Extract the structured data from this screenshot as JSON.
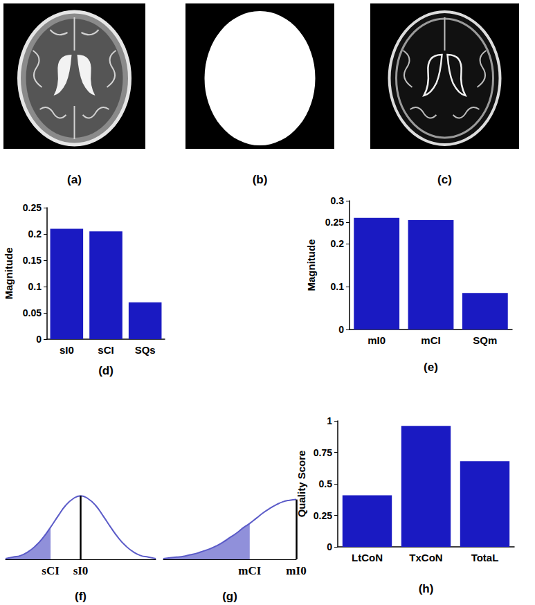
{
  "chart_data": [
    {
      "type": "image",
      "xlabel": "(a)"
    },
    {
      "type": "image",
      "xlabel": "(b)"
    },
    {
      "type": "image",
      "xlabel": "(c)"
    },
    {
      "type": "bar",
      "xlabel": "(d)",
      "ylabel": "Magnitude",
      "categories": [
        "sI0",
        "sCI",
        "SQs"
      ],
      "values": [
        0.21,
        0.205,
        0.07
      ],
      "color": "#1a1ac2",
      "ylim": [
        0,
        0.25
      ],
      "yticks": [
        0,
        0.05,
        0.1,
        0.15,
        0.2,
        0.25
      ],
      "grid": false
    },
    {
      "type": "bar",
      "xlabel": "(e)",
      "ylabel": "Magnitude",
      "categories": [
        "mI0",
        "mCI",
        "SQm"
      ],
      "values": [
        0.26,
        0.255,
        0.085
      ],
      "color": "#1a1ac2",
      "ylim": [
        0,
        0.3
      ],
      "yticks": [
        0,
        0.1,
        0.2,
        0.25,
        0.3
      ],
      "grid": false
    },
    {
      "type": "line",
      "xlabel": "(f)",
      "x": [
        0,
        0.5,
        1,
        1.5,
        2,
        2.5,
        3,
        3.5,
        4,
        4.5,
        5,
        5.5,
        6,
        6.5,
        7,
        7.5,
        8,
        8.5,
        9,
        9.5,
        10
      ],
      "series": [
        {
          "type": "area",
          "color": "#9090da",
          "values": [
            0.01,
            0.03,
            0.05,
            0.1,
            0.18,
            0.29,
            0.43,
            null,
            null,
            null,
            null,
            null,
            null,
            null,
            null,
            null,
            null,
            null,
            null,
            null,
            null
          ]
        },
        {
          "type": "line",
          "color": "#5b5bc8",
          "values": [
            0.01,
            0.03,
            0.05,
            0.1,
            0.18,
            0.29,
            0.43,
            0.58,
            0.72,
            0.81,
            0.85,
            0.81,
            0.72,
            0.58,
            0.43,
            0.29,
            0.18,
            0.1,
            0.05,
            0.03,
            0.01
          ]
        }
      ],
      "vlines": [
        5
      ],
      "xlim": [
        0,
        10
      ],
      "xticks": [
        {
          "value": 3,
          "label": "sCI"
        },
        {
          "value": 5,
          "label": "sI0"
        }
      ],
      "ylim": [
        0,
        1
      ],
      "tick_labels": "x",
      "grid": false
    },
    {
      "type": "line",
      "xlabel": "(g)",
      "x": [
        0,
        0.5,
        1,
        1.5,
        2,
        2.5,
        3,
        3.5,
        4,
        4.5,
        5,
        5.5,
        6,
        6.5,
        7,
        7.5,
        8,
        8.5,
        9,
        9.5,
        10
      ],
      "series": [
        {
          "type": "area",
          "color": "#9090da",
          "values": [
            0.01,
            0.02,
            0.03,
            0.04,
            0.06,
            0.08,
            0.11,
            0.14,
            0.18,
            0.23,
            0.29,
            0.35,
            0.42,
            0.48,
            null,
            null,
            null,
            null,
            null,
            null,
            null
          ]
        },
        {
          "type": "line",
          "color": "#5b5bc8",
          "values": [
            0.01,
            0.02,
            0.03,
            0.04,
            0.06,
            0.08,
            0.11,
            0.14,
            0.18,
            0.23,
            0.29,
            0.35,
            0.42,
            0.48,
            0.55,
            0.62,
            0.68,
            0.73,
            0.77,
            0.79,
            0.8
          ]
        }
      ],
      "vlines": [
        10
      ],
      "xlim": [
        0,
        10
      ],
      "xticks": [
        {
          "value": 6.5,
          "label": "mCI"
        },
        {
          "value": 10,
          "label": "mI0"
        }
      ],
      "ylim": [
        0,
        1
      ],
      "tick_labels": "x",
      "grid": false
    },
    {
      "type": "bar",
      "xlabel": "(h)",
      "ylabel": "Quality Score",
      "categories": [
        "LtCoN",
        "TxCoN",
        "TotaL"
      ],
      "values": [
        0.41,
        0.96,
        0.68
      ],
      "color": "#1a1ac2",
      "ylim": [
        0,
        1
      ],
      "yticks": [
        0,
        0.25,
        0.5,
        0.75,
        1
      ],
      "grid": false
    }
  ]
}
